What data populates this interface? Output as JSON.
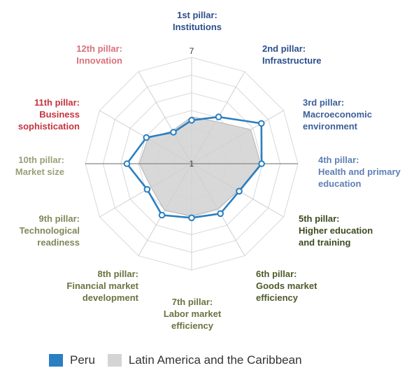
{
  "chart_data": {
    "type": "radar",
    "range": [
      1,
      7
    ],
    "grid": true,
    "ticks": [
      {
        "value": 1,
        "label": "1"
      },
      {
        "value": 7,
        "label": "7"
      }
    ],
    "axes": [
      {
        "lines": [
          "1st pillar:",
          "Institutions"
        ],
        "color": "#2b4f8c"
      },
      {
        "lines": [
          "2nd pillar:",
          "Infrastructure"
        ],
        "color": "#2b4f8c"
      },
      {
        "lines": [
          "3rd pillar:",
          "Macroeconomic",
          "environment"
        ],
        "color": "#3d5f9a"
      },
      {
        "lines": [
          "4th pillar:",
          "Health and primary",
          "education"
        ],
        "color": "#5f7fb5"
      },
      {
        "lines": [
          "5th pillar:",
          "Higher education",
          "and training"
        ],
        "color": "#3d4a1f"
      },
      {
        "lines": [
          "6th pillar:",
          "Goods market",
          "efficiency"
        ],
        "color": "#4e5a2a"
      },
      {
        "lines": [
          "7th pillar:",
          "Labor market",
          "efficiency"
        ],
        "color": "#6b7340"
      },
      {
        "lines": [
          "8th pillar:",
          "Financial market",
          "development"
        ],
        "color": "#6b7340"
      },
      {
        "lines": [
          "9th pillar:",
          "Technological",
          "readiness"
        ],
        "color": "#818759"
      },
      {
        "lines": [
          "10th pillar:",
          "Market size"
        ],
        "color": "#9a9f78"
      },
      {
        "lines": [
          "11th pillar:",
          "Business",
          "sophistication"
        ],
        "color": "#c4333f"
      },
      {
        "lines": [
          "12th pillar:",
          "Innovation"
        ],
        "color": "#d9717a"
      }
    ],
    "legend_position": "bottom",
    "series": [
      {
        "name": "Peru",
        "color": "#2a7fc1",
        "values": [
          3.45,
          4.05,
          5.55,
          4.95,
          4.1,
          4.25,
          4.05,
          4.35,
          3.9,
          4.65,
          3.95,
          3.05
        ]
      },
      {
        "name": "Latin America and the Caribbean",
        "color": "#d4d4d4",
        "values": [
          3.65,
          3.75,
          4.85,
          4.9,
          4.05,
          3.95,
          3.95,
          4.05,
          3.65,
          3.95,
          3.85,
          3.15
        ]
      }
    ]
  }
}
